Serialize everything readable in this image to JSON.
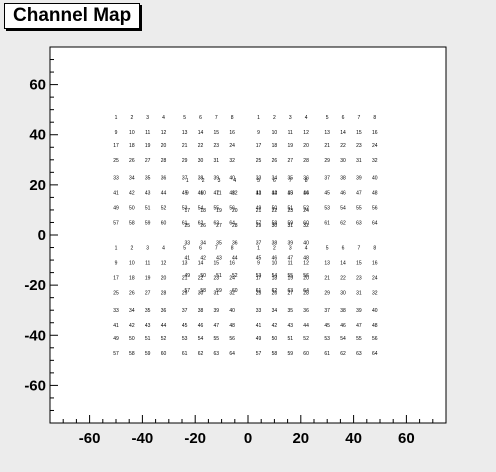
{
  "title": "Channel Map",
  "chart_data": {
    "type": "scatter",
    "title": "Channel Map",
    "xlabel": "",
    "ylabel": "",
    "xlim": [
      -75,
      75
    ],
    "ylim": [
      -75,
      75
    ],
    "grid": false,
    "xticks": [
      -60,
      -40,
      -20,
      0,
      20,
      40,
      60
    ],
    "yticks": [
      -60,
      -40,
      -20,
      0,
      20,
      40,
      60
    ],
    "text_color": "#000000",
    "frame_color": "#000000",
    "background": "#ffffff",
    "series": [
      {
        "x": [
          -50,
          -44,
          -38,
          -32,
          -24,
          -18,
          -12,
          -6,
          -50,
          -44,
          -38,
          -32,
          -24,
          -18,
          -12,
          -6,
          -50,
          -44,
          -38,
          -32,
          -24,
          -18,
          -12,
          -6,
          -50,
          -44,
          -38,
          -32,
          -24,
          -18,
          -12,
          -6,
          -50,
          -44,
          -38,
          -32,
          -24,
          -18,
          -12,
          -6,
          -50,
          -44,
          -38,
          -32,
          -24,
          -18,
          -12,
          -6,
          -50,
          -44,
          -38,
          -32,
          -24,
          -18,
          -12,
          -6,
          -50,
          -44,
          -38,
          -32,
          -24,
          -18,
          -12,
          -6
        ],
        "y": [
          47,
          47,
          47,
          47,
          47,
          47,
          47,
          47,
          41,
          41,
          41,
          41,
          41,
          41,
          41,
          41,
          36,
          36,
          36,
          36,
          36,
          36,
          36,
          36,
          30,
          30,
          30,
          30,
          30,
          30,
          30,
          30,
          23,
          23,
          23,
          23,
          23,
          23,
          23,
          23,
          17,
          17,
          17,
          17,
          17,
          17,
          17,
          17,
          11,
          11,
          11,
          11,
          11,
          11,
          11,
          11,
          5,
          5,
          5,
          5,
          5,
          5,
          5,
          5
        ],
        "labels": [
          "1",
          "2",
          "3",
          "4",
          "5",
          "6",
          "7",
          "8",
          "9",
          "10",
          "11",
          "12",
          "13",
          "14",
          "15",
          "16",
          "17",
          "18",
          "19",
          "20",
          "21",
          "22",
          "23",
          "24",
          "25",
          "26",
          "27",
          "28",
          "29",
          "30",
          "31",
          "32",
          "33",
          "34",
          "35",
          "36",
          "37",
          "38",
          "39",
          "40",
          "41",
          "42",
          "43",
          "44",
          "45",
          "46",
          "47",
          "48",
          "49",
          "50",
          "51",
          "52",
          "53",
          "54",
          "55",
          "56",
          "57",
          "58",
          "59",
          "60",
          "61",
          "62",
          "63",
          "64"
        ]
      },
      {
        "x": [
          4,
          10,
          16,
          22,
          30,
          36,
          42,
          48,
          4,
          10,
          16,
          22,
          30,
          36,
          42,
          48,
          4,
          10,
          16,
          22,
          30,
          36,
          42,
          48,
          4,
          10,
          16,
          22,
          30,
          36,
          42,
          48,
          4,
          10,
          16,
          22,
          30,
          36,
          42,
          48,
          4,
          10,
          16,
          22,
          30,
          36,
          42,
          48,
          4,
          10,
          16,
          22,
          30,
          36,
          42,
          48,
          4,
          10,
          16,
          22,
          30,
          36,
          42,
          48
        ],
        "y": [
          47,
          47,
          47,
          47,
          47,
          47,
          47,
          47,
          41,
          41,
          41,
          41,
          41,
          41,
          41,
          41,
          36,
          36,
          36,
          36,
          36,
          36,
          36,
          36,
          30,
          30,
          30,
          30,
          30,
          30,
          30,
          30,
          23,
          23,
          23,
          23,
          23,
          23,
          23,
          23,
          17,
          17,
          17,
          17,
          17,
          17,
          17,
          17,
          11,
          11,
          11,
          11,
          11,
          11,
          11,
          11,
          5,
          5,
          5,
          5,
          5,
          5,
          5,
          5
        ],
        "labels": [
          "1",
          "2",
          "3",
          "4",
          "5",
          "6",
          "7",
          "8",
          "9",
          "10",
          "11",
          "12",
          "13",
          "14",
          "15",
          "16",
          "17",
          "18",
          "19",
          "20",
          "21",
          "22",
          "23",
          "24",
          "25",
          "26",
          "27",
          "28",
          "29",
          "30",
          "31",
          "32",
          "33",
          "34",
          "35",
          "36",
          "37",
          "38",
          "39",
          "40",
          "41",
          "42",
          "43",
          "44",
          "45",
          "46",
          "47",
          "48",
          "49",
          "50",
          "51",
          "52",
          "53",
          "54",
          "55",
          "56",
          "57",
          "58",
          "59",
          "60",
          "61",
          "62",
          "63",
          "64"
        ]
      },
      {
        "x": [
          -50,
          -44,
          -38,
          -32,
          -24,
          -18,
          -12,
          -6,
          -50,
          -44,
          -38,
          -32,
          -24,
          -18,
          -12,
          -6,
          -50,
          -44,
          -38,
          -32,
          -24,
          -18,
          -12,
          -6,
          -50,
          -44,
          -38,
          -32,
          -24,
          -18,
          -12,
          -6,
          -50,
          -44,
          -38,
          -32,
          -24,
          -18,
          -12,
          -6,
          -50,
          -44,
          -38,
          -32,
          -24,
          -18,
          -12,
          -6,
          -50,
          -44,
          -38,
          -32,
          -24,
          -18,
          -12,
          -6,
          -50,
          -44,
          -38,
          -32,
          -24,
          -18,
          -12,
          -6
        ],
        "y": [
          -5,
          -5,
          -5,
          -5,
          -5,
          -5,
          -5,
          -5,
          -11,
          -11,
          -11,
          -11,
          -11,
          -11,
          -11,
          -11,
          -17,
          -17,
          -17,
          -17,
          -17,
          -17,
          -17,
          -17,
          -23,
          -23,
          -23,
          -23,
          -23,
          -23,
          -23,
          -23,
          -30,
          -30,
          -30,
          -30,
          -30,
          -30,
          -30,
          -30,
          -36,
          -36,
          -36,
          -36,
          -36,
          -36,
          -36,
          -36,
          -41,
          -41,
          -41,
          -41,
          -41,
          -41,
          -41,
          -41,
          -47,
          -47,
          -47,
          -47,
          -47,
          -47,
          -47,
          -47
        ],
        "labels": [
          "1",
          "2",
          "3",
          "4",
          "5",
          "6",
          "7",
          "8",
          "9",
          "10",
          "11",
          "12",
          "13",
          "14",
          "15",
          "16",
          "17",
          "18",
          "19",
          "20",
          "21",
          "22",
          "23",
          "24",
          "25",
          "26",
          "27",
          "28",
          "29",
          "30",
          "31",
          "32",
          "33",
          "34",
          "35",
          "36",
          "37",
          "38",
          "39",
          "40",
          "41",
          "42",
          "43",
          "44",
          "45",
          "46",
          "47",
          "48",
          "49",
          "50",
          "51",
          "52",
          "53",
          "54",
          "55",
          "56",
          "57",
          "58",
          "59",
          "60",
          "61",
          "62",
          "63",
          "64"
        ]
      },
      {
        "x": [
          4,
          10,
          16,
          22,
          30,
          36,
          42,
          48,
          4,
          10,
          16,
          22,
          30,
          36,
          42,
          48,
          4,
          10,
          16,
          22,
          30,
          36,
          42,
          48,
          4,
          10,
          16,
          22,
          30,
          36,
          42,
          48,
          4,
          10,
          16,
          22,
          30,
          36,
          42,
          48,
          4,
          10,
          16,
          22,
          30,
          36,
          42,
          48,
          4,
          10,
          16,
          22,
          30,
          36,
          42,
          48,
          4,
          10,
          16,
          22,
          30,
          36,
          42,
          48
        ],
        "y": [
          -5,
          -5,
          -5,
          -5,
          -5,
          -5,
          -5,
          -5,
          -11,
          -11,
          -11,
          -11,
          -11,
          -11,
          -11,
          -11,
          -17,
          -17,
          -17,
          -17,
          -17,
          -17,
          -17,
          -17,
          -23,
          -23,
          -23,
          -23,
          -23,
          -23,
          -23,
          -23,
          -30,
          -30,
          -30,
          -30,
          -30,
          -30,
          -30,
          -30,
          -36,
          -36,
          -36,
          -36,
          -36,
          -36,
          -36,
          -36,
          -41,
          -41,
          -41,
          -41,
          -41,
          -41,
          -41,
          -41,
          -47,
          -47,
          -47,
          -47,
          -47,
          -47,
          -47,
          -47
        ],
        "labels": [
          "1",
          "2",
          "3",
          "4",
          "5",
          "6",
          "7",
          "8",
          "9",
          "10",
          "11",
          "12",
          "13",
          "14",
          "15",
          "16",
          "17",
          "18",
          "19",
          "20",
          "21",
          "22",
          "23",
          "24",
          "25",
          "26",
          "27",
          "28",
          "29",
          "30",
          "31",
          "32",
          "33",
          "34",
          "35",
          "36",
          "37",
          "38",
          "39",
          "40",
          "41",
          "42",
          "43",
          "44",
          "45",
          "46",
          "47",
          "48",
          "49",
          "50",
          "51",
          "52",
          "53",
          "54",
          "55",
          "56",
          "57",
          "58",
          "59",
          "60",
          "61",
          "62",
          "63",
          "64"
        ]
      },
      {
        "x": [
          -23,
          -17,
          -11,
          -5,
          4,
          10,
          16,
          22,
          -23,
          -17,
          -11,
          -5,
          4,
          10,
          16,
          22,
          -23,
          -17,
          -11,
          -5,
          4,
          10,
          16,
          22,
          -23,
          -17,
          -11,
          -5,
          4,
          10,
          16,
          22,
          -23,
          -17,
          -11,
          -5,
          4,
          10,
          16,
          22,
          -23,
          -17,
          -11,
          -5,
          4,
          10,
          16,
          22,
          -23,
          -17,
          -11,
          -5,
          4,
          10,
          16,
          22,
          -23,
          -17,
          -11,
          -5,
          4,
          10,
          16,
          22
        ],
        "y": [
          22,
          22,
          22,
          22,
          22,
          22,
          22,
          22,
          17,
          17,
          17,
          17,
          17,
          17,
          17,
          17,
          10,
          10,
          10,
          10,
          10,
          10,
          10,
          10,
          4,
          4,
          4,
          4,
          4,
          4,
          4,
          4,
          -3,
          -3,
          -3,
          -3,
          -3,
          -3,
          -3,
          -3,
          -9,
          -9,
          -9,
          -9,
          -9,
          -9,
          -9,
          -9,
          -16,
          -16,
          -16,
          -16,
          -16,
          -16,
          -16,
          -16,
          -22,
          -22,
          -22,
          -22,
          -22,
          -22,
          -22,
          -22
        ],
        "labels": [
          "1",
          "2",
          "3",
          "4",
          "5",
          "6",
          "7",
          "8",
          "9",
          "10",
          "11",
          "12",
          "13",
          "14",
          "15",
          "16",
          "17",
          "18",
          "19",
          "20",
          "21",
          "22",
          "23",
          "24",
          "25",
          "26",
          "27",
          "28",
          "29",
          "30",
          "31",
          "32",
          "33",
          "34",
          "35",
          "36",
          "37",
          "38",
          "39",
          "40",
          "41",
          "42",
          "43",
          "44",
          "45",
          "46",
          "47",
          "48",
          "49",
          "50",
          "51",
          "52",
          "53",
          "54",
          "55",
          "56",
          "57",
          "58",
          "59",
          "60",
          "61",
          "62",
          "63",
          "64"
        ]
      }
    ]
  }
}
